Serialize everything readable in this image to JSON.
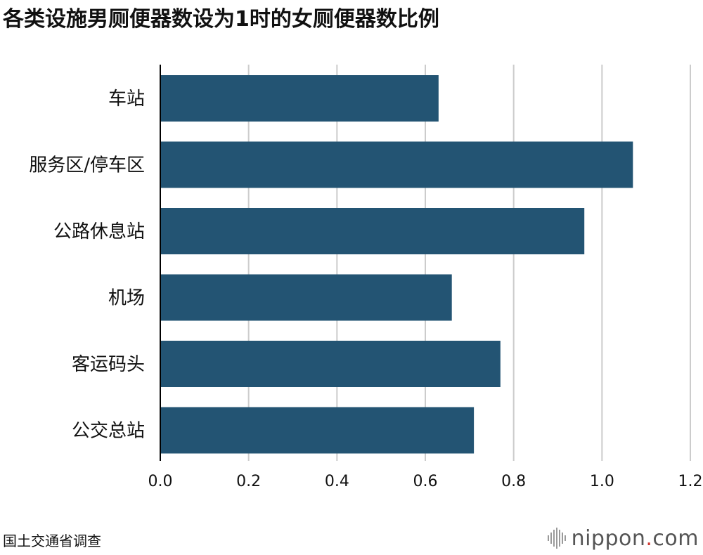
{
  "title": "各类设施男厕便器数设为1时的女厕便器数比例",
  "source": "国土交通省调查",
  "brand": {
    "name": "nippon",
    "dot": ".",
    "suffix": "com"
  },
  "colors": {
    "bar": "#235473",
    "grid": "#cccccc",
    "axis": "#000000",
    "text": "#111111",
    "brand_dot": "#d0362f"
  },
  "chart_data": {
    "type": "bar",
    "orientation": "horizontal",
    "categories": [
      "车站",
      "服务区/停车区",
      "公路休息站",
      "机场",
      "客运码头",
      "公交总站"
    ],
    "values": [
      0.63,
      1.07,
      0.96,
      0.66,
      0.77,
      0.71
    ],
    "xlim": [
      0,
      1.2
    ],
    "xticks": [
      "0.0",
      "0.2",
      "0.4",
      "0.6",
      "0.8",
      "1.0",
      "1.2"
    ],
    "grid": true
  }
}
